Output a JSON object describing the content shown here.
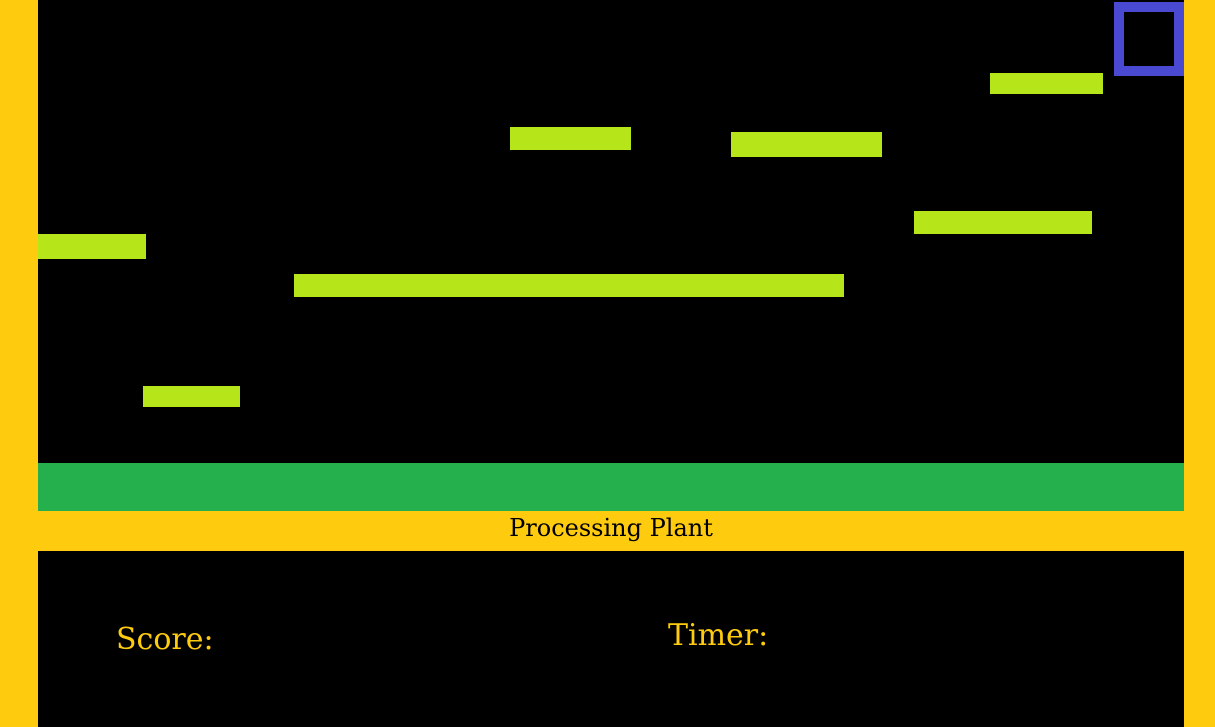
{
  "colors": {
    "border": "#fecb0f",
    "background": "#000000",
    "platform": "#b6e61a",
    "ground": "#25b04d",
    "player_outline": "#4a49d1",
    "hud_text": "#fecb0f",
    "title_text": "#000000"
  },
  "level": {
    "title": "Processing Plant"
  },
  "hud": {
    "score_label": "Score:",
    "timer_label": "Timer:"
  }
}
